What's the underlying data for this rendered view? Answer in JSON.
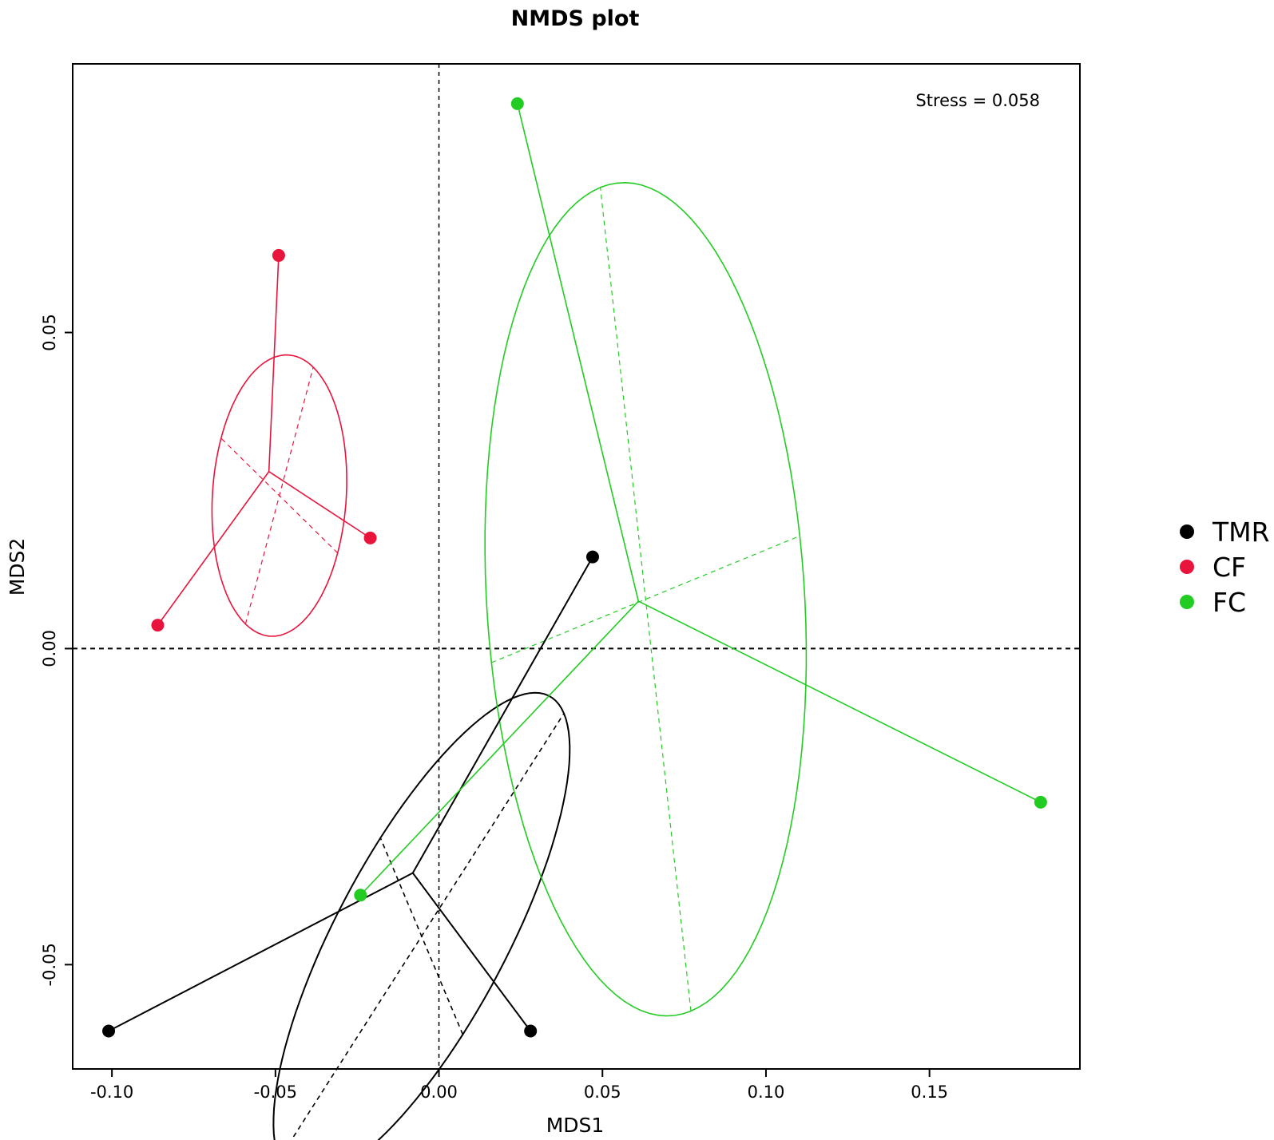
{
  "chart_data": {
    "type": "scatter",
    "title": "NMDS plot",
    "xlabel": "MDS1",
    "ylabel": "MDS2",
    "xlim": [
      -0.112,
      0.196
    ],
    "ylim": [
      -0.0665,
      0.0925
    ],
    "xticks": [
      -0.1,
      -0.05,
      0.0,
      0.05,
      0.1,
      0.15
    ],
    "xtick_labels": [
      "-0.10",
      "-0.05",
      "0.00",
      "0.05",
      "0.10",
      "0.15"
    ],
    "yticks": [
      -0.05,
      0.0,
      0.05
    ],
    "ytick_labels": [
      "-0.05",
      "0.00",
      "0.05"
    ],
    "reference_lines": {
      "x": 0,
      "y": 0,
      "style": "dashed"
    },
    "annotation": "Stress = 0.058",
    "grid": false,
    "legend_position": "right",
    "series": [
      {
        "name": "TMR",
        "color": "#000000",
        "centroid": [
          -0.008,
          -0.0355
        ],
        "points": [
          [
            -0.101,
            -0.0605
          ],
          [
            0.028,
            -0.0605
          ],
          [
            0.047,
            0.0145
          ]
        ],
        "ellipse": {
          "center": [
            -0.0053,
            -0.0455
          ],
          "semi_axes": [
            0.056,
            0.02
          ],
          "angle_deg": 39
        }
      },
      {
        "name": "CF",
        "color": "#e8143c",
        "centroid": [
          -0.052,
          0.028
        ],
        "points": [
          [
            -0.086,
            0.0037
          ],
          [
            -0.049,
            0.0622
          ],
          [
            -0.021,
            0.0175
          ]
        ],
        "ellipse": {
          "center": [
            -0.0488,
            0.0242
          ],
          "semi_axes": [
            0.0228,
            0.02
          ],
          "angle_deg": 63
        }
      },
      {
        "name": "FC",
        "color": "#22cc22",
        "centroid": [
          0.061,
          0.0075
        ],
        "points": [
          [
            -0.024,
            -0.039
          ],
          [
            0.024,
            0.0862
          ],
          [
            0.184,
            -0.0243
          ]
        ],
        "ellipse": {
          "center": [
            0.0632,
            0.0078
          ],
          "semi_axes": [
            0.0482,
            0.0666
          ],
          "angle_deg": 12
        }
      }
    ]
  }
}
